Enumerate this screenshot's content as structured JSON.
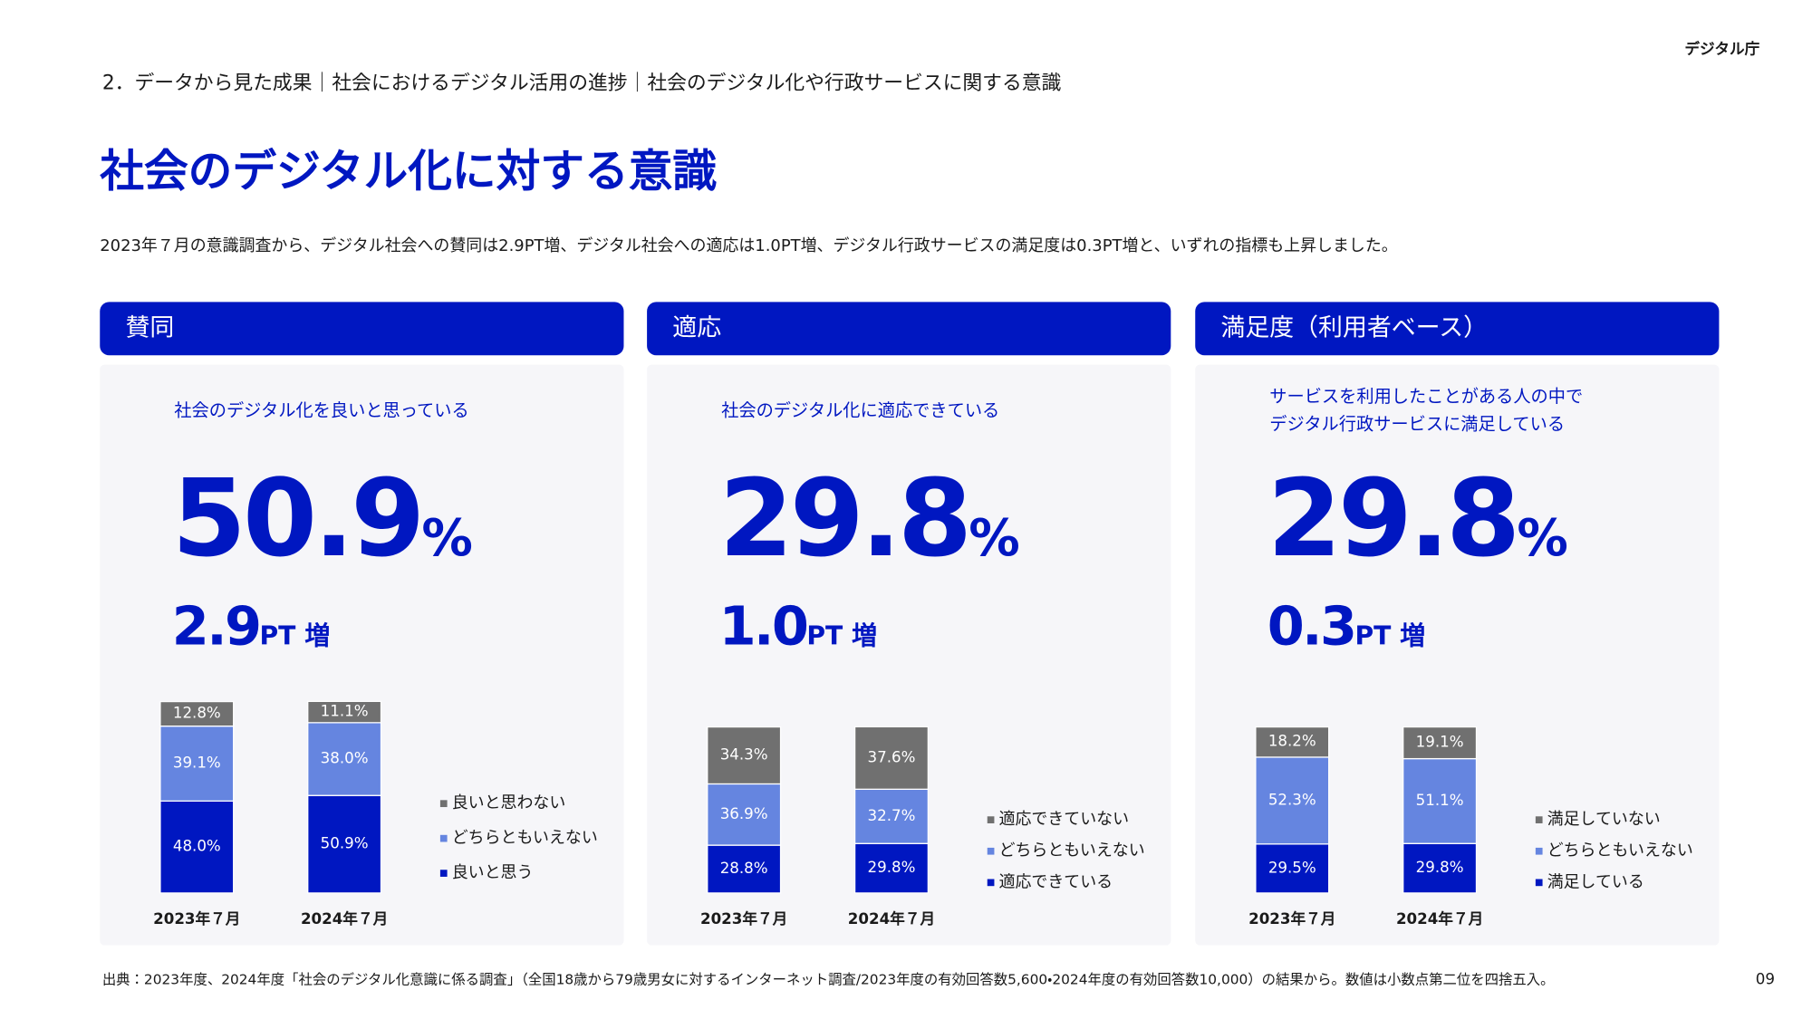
{
  "header": {
    "org": "デジタル庁",
    "breadcrumb": "2．データから見た成果｜社会におけるデジタル活用の進捗｜社会のデジタル化や行政サービスに関する意識"
  },
  "title": "社会のデジタル化に対する意識",
  "description": "2023年７月の意識調査から、デジタル社会への賛同は2.9PT増、デジタル社会への適応は1.0PT増、デジタル行政サービスの満足度は0.3PT増と、いずれの指標も上昇しました。",
  "chart_data": [
    {
      "type": "bar",
      "stacked": true,
      "title": "賛同",
      "subtitle": [
        "社会のデジタル化を良いと思っている"
      ],
      "headline": {
        "value": "50.9",
        "unit": "%"
      },
      "change": {
        "value": "2.9",
        "unit": "PT 増"
      },
      "categories": [
        "2023年７月",
        "2024年７月"
      ],
      "ylim": [
        0,
        100
      ],
      "series": [
        {
          "name": "良いと思う",
          "color": "#0017c1",
          "values": [
            48.0,
            50.9
          ],
          "value_labels": [
            "48.0%",
            "50.9%"
          ]
        },
        {
          "name": "どちらともいえない",
          "color": "#6585e0",
          "values": [
            39.1,
            38.0
          ],
          "value_labels": [
            "39.1%",
            "38.0%"
          ]
        },
        {
          "name": "良いと思わない",
          "color": "#707070",
          "values": [
            12.8,
            11.1
          ],
          "value_labels": [
            "12.8%",
            "11.1%"
          ]
        }
      ]
    },
    {
      "type": "bar",
      "stacked": true,
      "title": "適応",
      "subtitle": [
        "社会のデジタル化に適応できている"
      ],
      "headline": {
        "value": "29.8",
        "unit": "%"
      },
      "change": {
        "value": "1.0",
        "unit": "PT 増"
      },
      "categories": [
        "2023年７月",
        "2024年７月"
      ],
      "ylim": [
        0,
        100
      ],
      "series": [
        {
          "name": "適応できている",
          "color": "#0017c1",
          "values": [
            28.8,
            29.8
          ],
          "value_labels": [
            "28.8%",
            "29.8%"
          ]
        },
        {
          "name": "どちらともいえない",
          "color": "#6585e0",
          "values": [
            36.9,
            32.7
          ],
          "value_labels": [
            "36.9%",
            "32.7%"
          ]
        },
        {
          "name": "適応できていない",
          "color": "#707070",
          "values": [
            34.3,
            37.6
          ],
          "value_labels": [
            "34.3%",
            "37.6%"
          ]
        }
      ]
    },
    {
      "type": "bar",
      "stacked": true,
      "title": "満足度（利用者ベース）",
      "subtitle": [
        "サービスを利用したことがある人の中で",
        "デジタル行政サービスに満足している"
      ],
      "headline": {
        "value": "29.8",
        "unit": "%"
      },
      "change": {
        "value": "0.3",
        "unit": "PT 増"
      },
      "categories": [
        "2023年７月",
        "2024年７月"
      ],
      "ylim": [
        0,
        100
      ],
      "series": [
        {
          "name": "満足している",
          "color": "#0017c1",
          "values": [
            29.5,
            29.8
          ],
          "value_labels": [
            "29.5%",
            "29.8%"
          ]
        },
        {
          "name": "どちらともいえない",
          "color": "#6585e0",
          "values": [
            52.3,
            51.1
          ],
          "value_labels": [
            "52.3%",
            "51.1%"
          ]
        },
        {
          "name": "満足していない",
          "color": "#707070",
          "values": [
            18.2,
            19.1
          ],
          "value_labels": [
            "18.2%",
            "19.1%"
          ]
        }
      ]
    }
  ],
  "footer": "出典：2023年度、2024年度「社会のデジタル化意識に係る調査」（全国18歳から79歳男女に対するインターネット調査/2023年度の有効回答数5,600・2024年度の有効回答数10,000）の結果から。数値は小数点第二位を四捨五入。",
  "page_number": "09"
}
